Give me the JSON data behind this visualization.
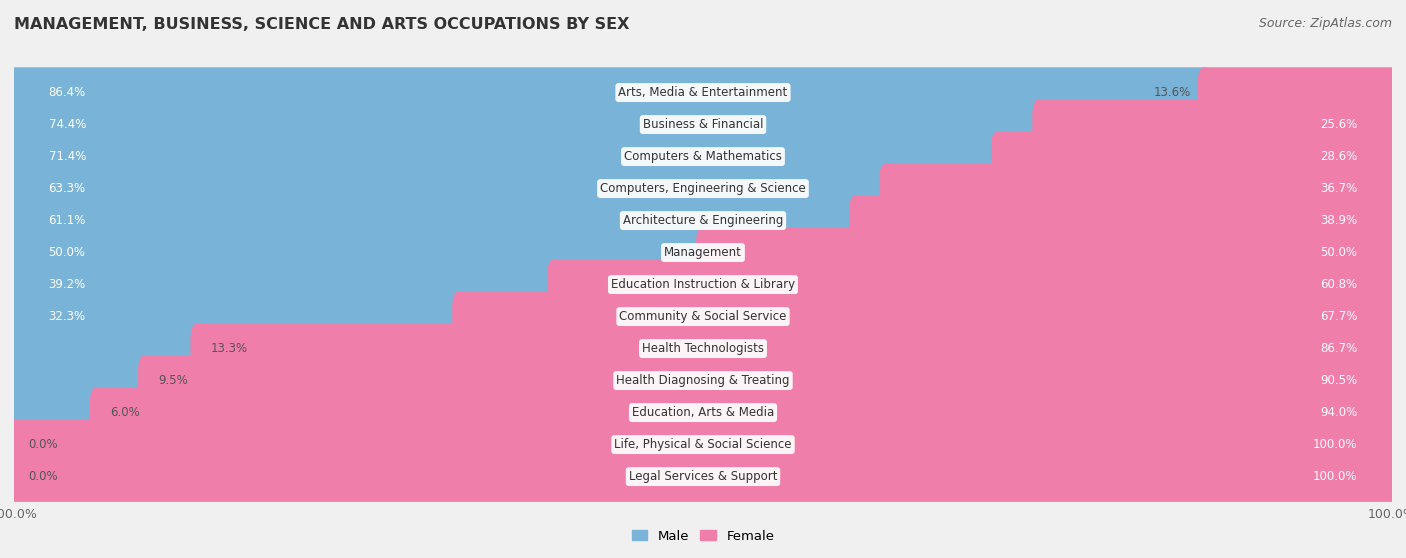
{
  "title": "MANAGEMENT, BUSINESS, SCIENCE AND ARTS OCCUPATIONS BY SEX",
  "source": "Source: ZipAtlas.com",
  "categories": [
    "Arts, Media & Entertainment",
    "Business & Financial",
    "Computers & Mathematics",
    "Computers, Engineering & Science",
    "Architecture & Engineering",
    "Management",
    "Education Instruction & Library",
    "Community & Social Service",
    "Health Technologists",
    "Health Diagnosing & Treating",
    "Education, Arts & Media",
    "Life, Physical & Social Science",
    "Legal Services & Support"
  ],
  "male_pct": [
    86.4,
    74.4,
    71.4,
    63.3,
    61.1,
    50.0,
    39.2,
    32.3,
    13.3,
    9.5,
    6.0,
    0.0,
    0.0
  ],
  "female_pct": [
    13.6,
    25.6,
    28.6,
    36.7,
    38.9,
    50.0,
    60.8,
    67.7,
    86.7,
    90.5,
    94.0,
    100.0,
    100.0
  ],
  "male_color": "#7ab3d8",
  "female_color": "#f07eaa",
  "male_color_light": "#b8d4e8",
  "female_color_light": "#f8b8cf",
  "bg_color": "#f0f0f0",
  "row_bg_even": "#ffffff",
  "row_bg_odd": "#e8e8e8",
  "title_fontsize": 11.5,
  "label_fontsize": 8.5,
  "tick_fontsize": 9,
  "source_fontsize": 9
}
